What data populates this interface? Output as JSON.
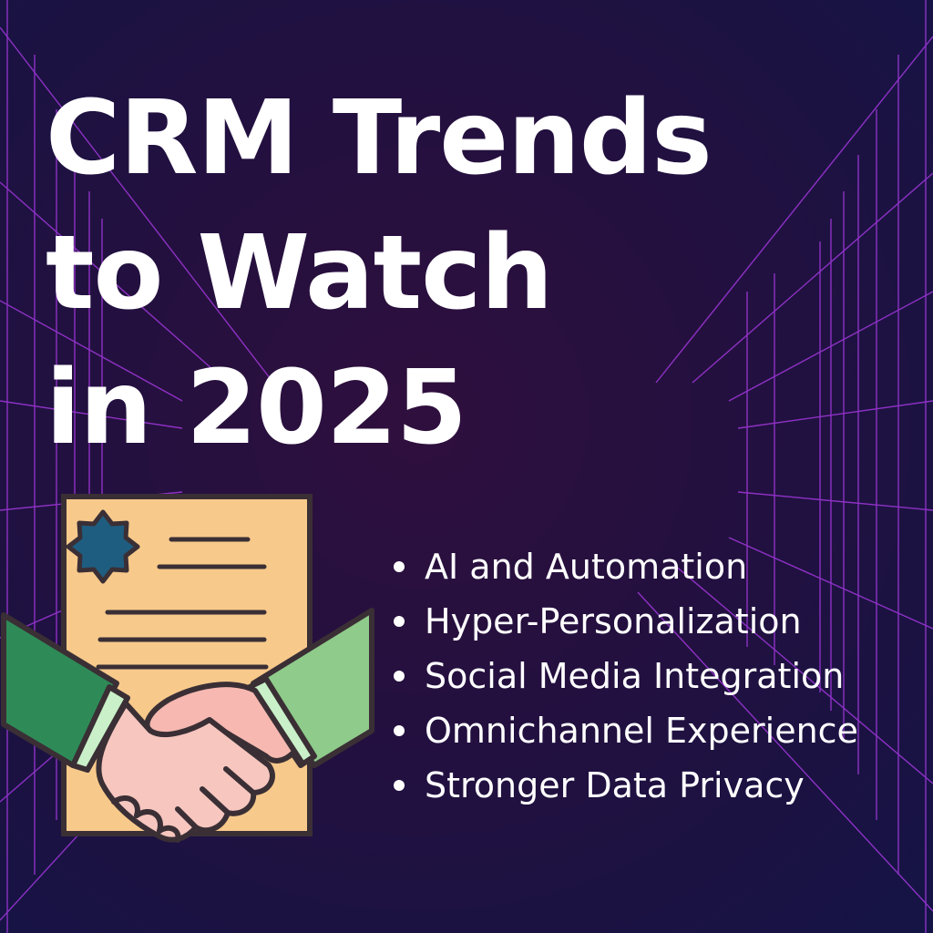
{
  "title": {
    "line1": "CRM Trends",
    "line2": "to Watch",
    "line3": "in 2025"
  },
  "illustration": {
    "icons": [
      "document-icon",
      "seal-icon",
      "handshake-icon"
    ]
  },
  "bullets": [
    "AI and Automation",
    "Hyper-Personalization",
    "Social Media Integration",
    "Omnichannel Experience",
    "Stronger Data Privacy"
  ],
  "colors": {
    "background": "#1f1040",
    "grid": "#b23cf0",
    "title": "#ffffff",
    "document": "#f7c98b",
    "seal": "#1f5d80",
    "sleeve_left": "#2e8b57",
    "sleeve_right": "#8fcb8b",
    "hand": "#f6b8b0",
    "outline": "#3a2f35"
  }
}
